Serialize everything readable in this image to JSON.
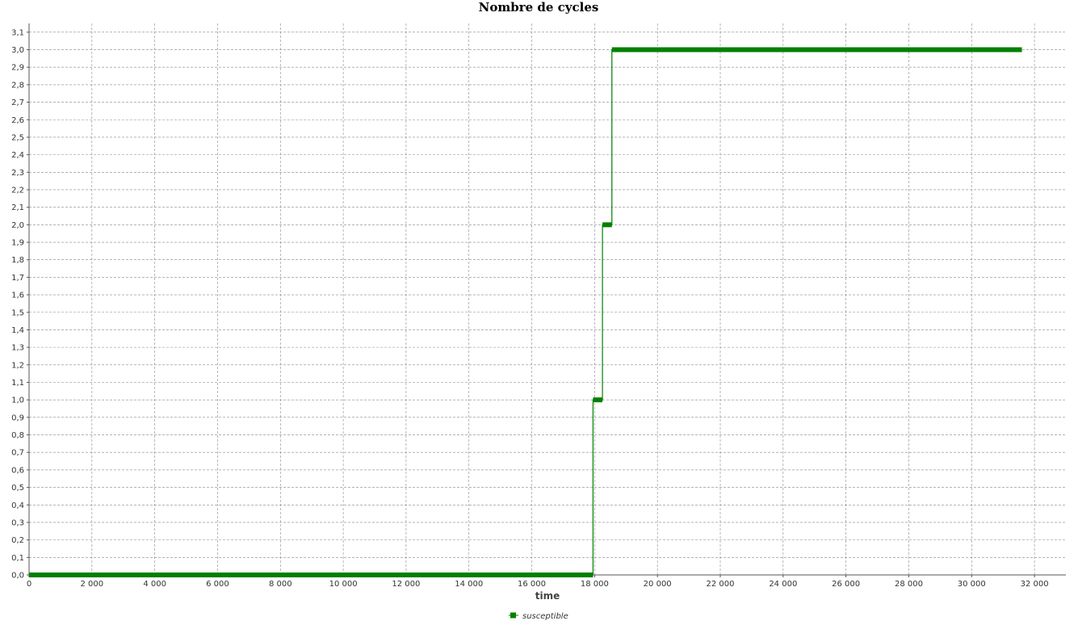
{
  "chart_data": {
    "type": "line",
    "title": "Nombre de cycles",
    "xlabel": "time",
    "ylabel": "",
    "xlim": [
      0,
      33000
    ],
    "ylim": [
      0,
      3.15
    ],
    "x_ticks": [
      0,
      2000,
      4000,
      6000,
      8000,
      10000,
      12000,
      14000,
      16000,
      18000,
      20000,
      22000,
      24000,
      26000,
      28000,
      30000,
      32000
    ],
    "x_tick_labels": [
      "0",
      "2 000",
      "4 000",
      "6 000",
      "8 000",
      "10 000",
      "12 000",
      "14 000",
      "16 000",
      "18 000",
      "20 000",
      "22 000",
      "24 000",
      "26 000",
      "28 000",
      "30 000",
      "32 000"
    ],
    "y_ticks": [
      0,
      0.1,
      0.2,
      0.3,
      0.4,
      0.5,
      0.6,
      0.7,
      0.8,
      0.9,
      1.0,
      1.1,
      1.2,
      1.3,
      1.4,
      1.5,
      1.6,
      1.7,
      1.8,
      1.9,
      2.0,
      2.1,
      2.2,
      2.3,
      2.4,
      2.5,
      2.6,
      2.7,
      2.8,
      2.9,
      3.0,
      3.1
    ],
    "y_tick_labels": [
      "0,0",
      "0,1",
      "0,2",
      "0,3",
      "0,4",
      "0,5",
      "0,6",
      "0,7",
      "0,8",
      "0,9",
      "1,0",
      "1,1",
      "1,2",
      "1,3",
      "1,4",
      "1,5",
      "1,6",
      "1,7",
      "1,8",
      "1,9",
      "2,0",
      "2,1",
      "2,2",
      "2,3",
      "2,4",
      "2,5",
      "2,6",
      "2,7",
      "2,8",
      "2,9",
      "3,0",
      "3,1"
    ],
    "grid": true,
    "legend_position": "bottom",
    "series": [
      {
        "name": "susceptible",
        "color": "#008000",
        "marker": "square",
        "segments": [
          {
            "x_start": 0,
            "x_end": 17950,
            "y": 0.0
          },
          {
            "x_start": 17950,
            "x_end": 18250,
            "y": 1.0
          },
          {
            "x_start": 18250,
            "x_end": 18550,
            "y": 2.0
          },
          {
            "x_start": 18550,
            "x_end": 31600,
            "y": 3.0
          }
        ]
      }
    ]
  }
}
